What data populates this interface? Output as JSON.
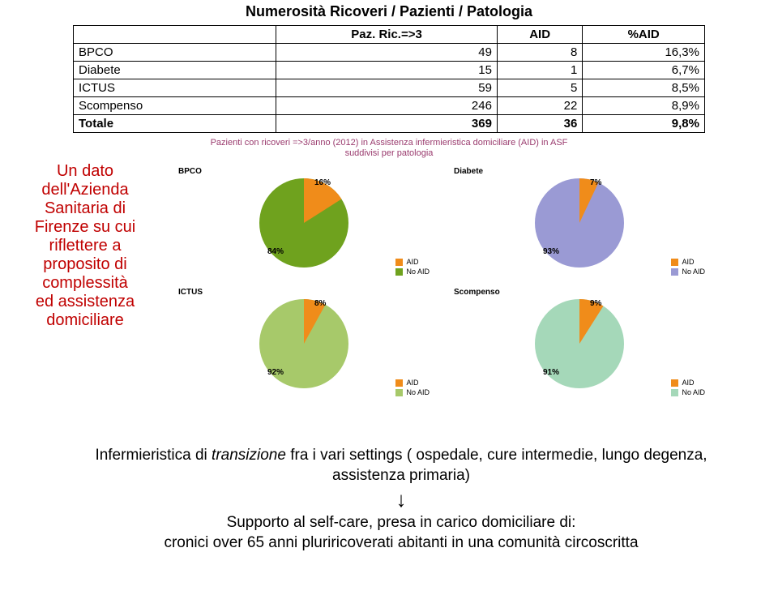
{
  "title": "Numerosità Ricoveri / Pazienti / Patologia",
  "table": {
    "headers": [
      "",
      "Paz. Ric.=>3",
      "AID",
      "%AID"
    ],
    "rows": [
      [
        "BPCO",
        "49",
        "8",
        "16,3%"
      ],
      [
        "Diabete",
        "15",
        "1",
        "6,7%"
      ],
      [
        "ICTUS",
        "59",
        "5",
        "8,5%"
      ],
      [
        "Scompenso",
        "246",
        "22",
        "8,9%"
      ]
    ],
    "total": [
      "Totale",
      "369",
      "36",
      "9,8%"
    ]
  },
  "chart_header_line1": "Pazienti con ricoveri =>3/anno (2012) in Assistenza infermieristica domiciliare (AID) in ASF",
  "chart_header_line2": "suddivisi per patologia",
  "legend_labels": {
    "aid": "AID",
    "noaid": "No AID"
  },
  "charts": {
    "bpco": {
      "label": "BPCO",
      "aid_pct": 16,
      "noaid_pct": 84,
      "aid_color": "#f08c1a",
      "noaid_color": "#6fa21e"
    },
    "diabete": {
      "label": "Diabete",
      "aid_pct": 7,
      "noaid_pct": 93,
      "aid_color": "#f08c1a",
      "noaid_color": "#9a9ad4"
    },
    "ictus": {
      "label": "ICTUS",
      "aid_pct": 8,
      "noaid_pct": 92,
      "aid_color": "#f08c1a",
      "noaid_color": "#a7c96a"
    },
    "scompenso": {
      "label": "Scompenso",
      "aid_pct": 9,
      "noaid_pct": 91,
      "aid_color": "#f08c1a",
      "noaid_color": "#a5d8b9"
    }
  },
  "sidebar": {
    "l1": "Un dato",
    "l2": "dell'Azienda",
    "l3": "Sanitaria di",
    "l4": "Firenze su cui",
    "l5": "riflettere a",
    "l6": "proposito di",
    "l7": "complessità",
    "l8": "ed assistenza",
    "l9": "domiciliare"
  },
  "bottom": {
    "line1a": "Infermieristica di ",
    "line1b": "transizione",
    "line1c": " fra i vari settings  ( ospedale, cure intermedie, lungo degenza, assistenza primaria)",
    "arrow": "↓",
    "line2": "Supporto al self-care, presa in carico domiciliare di:",
    "line3": "cronici over 65 anni pluriricoverati abitanti in una comunità circoscritta"
  },
  "style": {
    "border_color": "#000000",
    "background": "#ffffff",
    "sidebar_color": "#c00000",
    "chart_title_color": "#9a3b6e"
  }
}
